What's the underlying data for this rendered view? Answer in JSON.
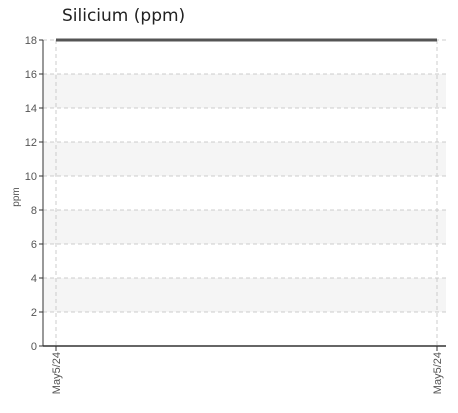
{
  "chart_data": {
    "type": "line",
    "title": "Silicium (ppm)",
    "xlabel": "",
    "ylabel": "ppm",
    "x": [
      "May5/24",
      "May5/24"
    ],
    "series": [
      {
        "values": [
          18,
          18
        ]
      }
    ],
    "ylim": [
      0,
      18
    ],
    "yticks": [
      0,
      2,
      4,
      6,
      8,
      10,
      12,
      14,
      16,
      18
    ],
    "grid": true,
    "colors": {
      "series_line": "#555555",
      "band": "#f5f5f5",
      "grid": "#cccccc",
      "axis": "#333333",
      "text": "#555555",
      "title": "#222222"
    }
  }
}
